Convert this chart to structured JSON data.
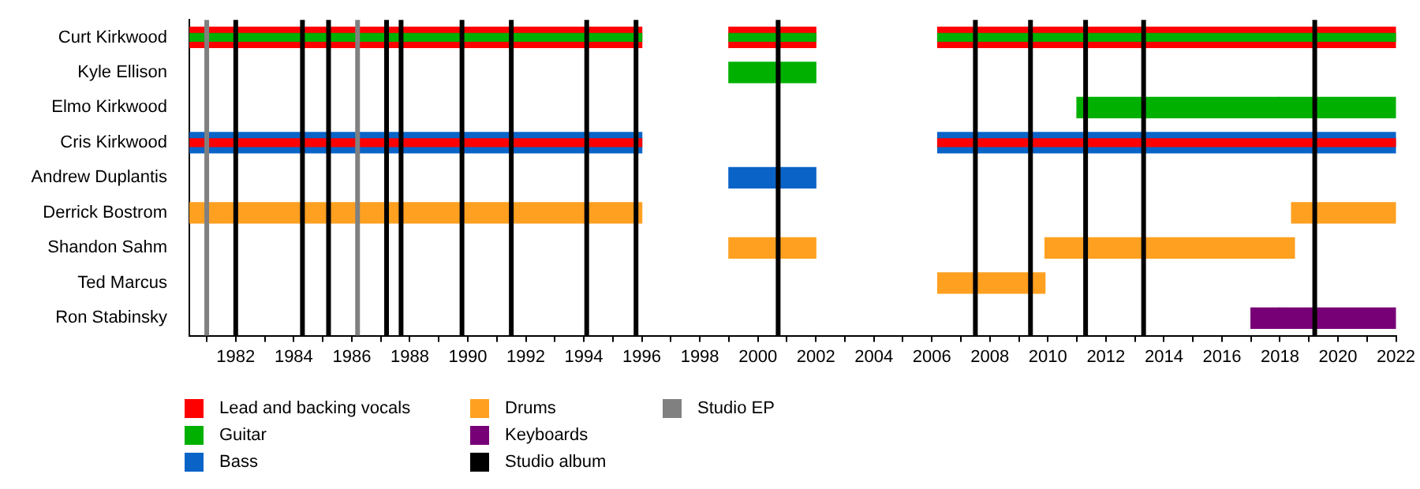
{
  "chart_data": {
    "type": "bar",
    "orientation": "horizontal",
    "categories": [
      "Curt Kirkwood",
      "Kyle Ellison",
      "Elmo Kirkwood",
      "Cris Kirkwood",
      "Andrew Duplantis",
      "Derrick Bostrom",
      "Shandon Sahm",
      "Ted Marcus",
      "Ron Stabinsky"
    ],
    "series": [
      {
        "name": "Bass",
        "color": "#0a64c8",
        "values": [
          null,
          null,
          null,
          15.6,
          3,
          null,
          null,
          null,
          null
        ],
        "base": [
          null,
          null,
          null,
          1980.4,
          1999,
          null,
          null,
          null,
          null
        ]
      },
      {
        "color": "#0a64c8",
        "values": [
          null,
          null,
          null,
          15.8,
          null,
          null,
          null,
          null,
          null
        ],
        "base": [
          null,
          null,
          null,
          2006.2,
          null,
          null,
          null,
          null,
          null
        ]
      },
      {
        "name": "Lead and backing vocals",
        "color": "#ff0000",
        "values": [
          15.6,
          null,
          null,
          15.6,
          null,
          null,
          null,
          null,
          null
        ],
        "base": [
          1980.4,
          null,
          null,
          1980.4,
          null,
          null,
          null,
          null,
          null
        ]
      },
      {
        "color": "#ff0000",
        "values": [
          3,
          null,
          null,
          null,
          null,
          null,
          null,
          null,
          null
        ],
        "base": [
          1999,
          null,
          null,
          null,
          null,
          null,
          null,
          null,
          null
        ]
      },
      {
        "color": "#ff0000",
        "values": [
          15.8,
          null,
          null,
          15.8,
          null,
          null,
          null,
          null,
          null
        ],
        "base": [
          2006.2,
          null,
          null,
          2006.2,
          null,
          null,
          null,
          null,
          null
        ]
      },
      {
        "name": "Guitar",
        "color": "#00b000",
        "values": [
          15.6,
          3,
          4,
          null,
          null,
          null,
          null,
          null,
          null
        ],
        "base": [
          1980.4,
          1999,
          2018,
          null,
          null,
          null,
          null,
          null,
          null
        ]
      },
      {
        "color": "#00b000",
        "values": [
          3,
          null,
          7,
          null,
          null,
          null,
          null,
          null,
          null
        ],
        "base": [
          1999,
          null,
          2011,
          null,
          null,
          null,
          null,
          null,
          null
        ]
      },
      {
        "color": "#00b000",
        "values": [
          15.8,
          null,
          null,
          null,
          null,
          null,
          null,
          null,
          null
        ],
        "base": [
          2006.2,
          null,
          null,
          null,
          null,
          null,
          null,
          null,
          null
        ]
      },
      {
        "name": "Drums",
        "color": "#ffa020",
        "values": [
          null,
          null,
          null,
          null,
          null,
          15.6,
          3,
          3.7,
          null
        ],
        "base": [
          null,
          null,
          null,
          null,
          null,
          1980.4,
          1999,
          2006.2,
          null
        ]
      },
      {
        "color": "#ffa020",
        "values": [
          null,
          null,
          null,
          null,
          null,
          3.6,
          8.6,
          null,
          null
        ],
        "base": [
          null,
          null,
          null,
          null,
          null,
          2018.4,
          2009.9,
          null,
          null
        ]
      },
      {
        "name": "Keyboards",
        "color": "#770077",
        "values": [
          null,
          null,
          null,
          null,
          null,
          null,
          null,
          null,
          4
        ],
        "base": [
          null,
          null,
          null,
          null,
          null,
          null,
          null,
          null,
          2018
        ]
      },
      {
        "color": "#770077",
        "values": [
          null,
          null,
          null,
          null,
          null,
          null,
          null,
          null,
          1
        ],
        "base": [
          null,
          null,
          null,
          null,
          null,
          null,
          null,
          null,
          2017
        ]
      }
    ],
    "ref_lines": [
      {
        "axis": "x",
        "value": 1981,
        "label": "Studio EP",
        "color": "#808080"
      },
      {
        "axis": "x",
        "value": 1986.2,
        "color": "#808080"
      },
      {
        "axis": "x",
        "value": 1982,
        "label": "Studio album",
        "color": "#000000"
      },
      {
        "axis": "x",
        "value": 1984.3,
        "color": "#000000"
      },
      {
        "axis": "x",
        "value": 1985.2,
        "color": "#000000"
      },
      {
        "axis": "x",
        "value": 1987.2,
        "color": "#000000"
      },
      {
        "axis": "x",
        "value": 1987.7,
        "color": "#000000"
      },
      {
        "axis": "x",
        "value": 1989.8,
        "color": "#000000"
      },
      {
        "axis": "x",
        "value": 1991.5,
        "color": "#000000"
      },
      {
        "axis": "x",
        "value": 1994.1,
        "color": "#000000"
      },
      {
        "axis": "x",
        "value": 1995.8,
        "color": "#000000"
      },
      {
        "axis": "x",
        "value": 2000.7,
        "color": "#000000"
      },
      {
        "axis": "x",
        "value": 2007.5,
        "color": "#000000"
      },
      {
        "axis": "x",
        "value": 2009.4,
        "color": "#000000"
      },
      {
        "axis": "x",
        "value": 2011.3,
        "color": "#000000"
      },
      {
        "axis": "x",
        "value": 2013.3,
        "color": "#000000"
      },
      {
        "axis": "x",
        "value": 2019.2,
        "color": "#000000"
      }
    ],
    "xlim": [
      1980.4,
      2022
    ],
    "xticks": [
      {
        "value": 1981,
        "label": null
      },
      1982,
      {
        "value": 1983,
        "label": null
      },
      1984,
      {
        "value": 1985,
        "label": null
      },
      1986,
      {
        "value": 1987,
        "label": null
      },
      1988,
      {
        "value": 1989,
        "label": null
      },
      1990,
      {
        "value": 1991,
        "label": null
      },
      1992,
      {
        "value": 1993,
        "label": null
      },
      1994,
      {
        "value": 1995,
        "label": null
      },
      1996,
      {
        "value": 1997,
        "label": null
      },
      1998,
      {
        "value": 1999,
        "label": null
      },
      2000,
      {
        "value": 2001,
        "label": null
      },
      2002,
      {
        "value": 2003,
        "label": null
      },
      2004,
      {
        "value": 2005,
        "label": null
      },
      2006,
      {
        "value": 2007,
        "label": null
      },
      2008,
      {
        "value": 2009,
        "label": null
      },
      2010,
      {
        "value": 2011,
        "label": null
      },
      2012,
      {
        "value": 2013,
        "label": null
      },
      2014,
      {
        "value": 2015,
        "label": null
      },
      2016,
      {
        "value": 2017,
        "label": null
      },
      2018,
      {
        "value": 2019,
        "label": null
      },
      2020,
      {
        "value": 2021,
        "label": null
      },
      2022
    ],
    "grid": false,
    "legend": "bottom left"
  }
}
